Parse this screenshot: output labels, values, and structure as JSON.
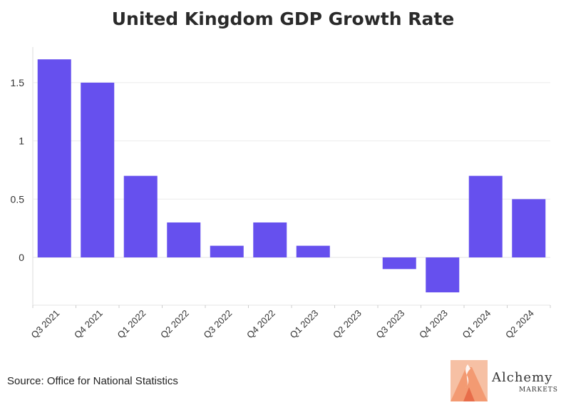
{
  "chart_data": {
    "type": "bar",
    "title": "United Kingdom GDP Growth Rate",
    "categories": [
      "Q3 2021",
      "Q4 2021",
      "Q1 2022",
      "Q2 2022",
      "Q3 2022",
      "Q4 2022",
      "Q1 2023",
      "Q2 2023",
      "Q3 2023",
      "Q4 2023",
      "Q1 2024",
      "Q2 2024"
    ],
    "values": [
      1.7,
      1.5,
      0.7,
      0.3,
      0.1,
      0.3,
      0.1,
      0,
      -0.1,
      -0.3,
      0.7,
      0.5
    ],
    "yticks": [
      0,
      0.5,
      1,
      1.5
    ],
    "ytick_labels": [
      "0",
      "0.5",
      "1",
      "1.5"
    ],
    "ylim": [
      -0.4,
      1.8
    ],
    "grid": true,
    "bar_color": "#6650ee"
  },
  "source": "Source: Office for National Statistics",
  "logo": {
    "name": "Alchemy",
    "sub": "MARKETS",
    "colors": [
      "#f39a72",
      "#f6c0a4",
      "#e86d4a"
    ]
  }
}
